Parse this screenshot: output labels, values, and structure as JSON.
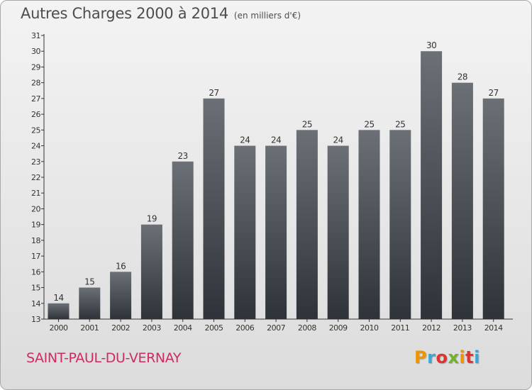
{
  "header": {
    "title": "Autres Charges 2000 à 2014",
    "subtitle": "(en milliers d'€)"
  },
  "footer": {
    "commune": "SAINT-PAUL-DU-VERNAY",
    "brand": "Proxiti",
    "brand_colors": [
      "#f29400",
      "#3aa6d8",
      "#e3312f",
      "#6fb32b",
      "#f29400",
      "#e3312f",
      "#3aa6d8"
    ]
  },
  "colors": {
    "title": "#4d4d4d",
    "commune": "#cc2c62",
    "bar_top": "#6a7075",
    "bar_bottom": "#2d3338",
    "axis": "#333333"
  },
  "chart_data": {
    "type": "bar",
    "categories": [
      "2000",
      "2001",
      "2002",
      "2003",
      "2004",
      "2005",
      "2006",
      "2007",
      "2008",
      "2009",
      "2010",
      "2011",
      "2012",
      "2013",
      "2014"
    ],
    "values": [
      14,
      15,
      16,
      19,
      23,
      27,
      24,
      24,
      25,
      24,
      25,
      25,
      30,
      28,
      27
    ],
    "data_labels": [
      "14",
      "15",
      "16",
      "19",
      "23",
      "27",
      "24",
      "24",
      "25",
      "24",
      "25",
      "25",
      "30",
      "28",
      "27"
    ],
    "title": "Autres Charges 2000 à 2014",
    "subtitle": "(en milliers d'€)",
    "xlabel": "",
    "ylabel": "",
    "ylim": [
      13,
      31
    ],
    "yticks": [
      13,
      14,
      15,
      16,
      17,
      18,
      19,
      20,
      21,
      22,
      23,
      24,
      25,
      26,
      27,
      28,
      29,
      30,
      31
    ],
    "grid": false,
    "legend": "none"
  }
}
